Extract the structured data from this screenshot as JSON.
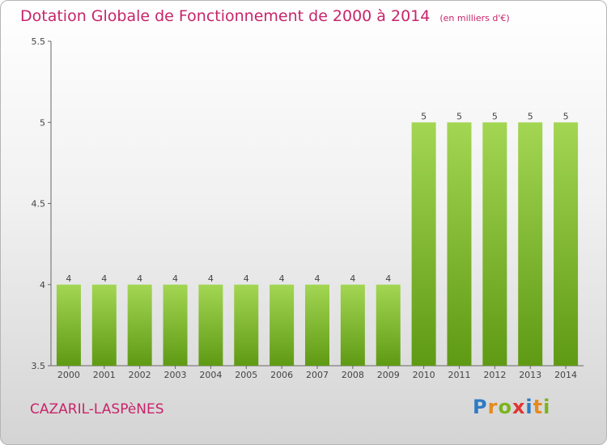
{
  "header": {
    "title": "Dotation Globale de Fonctionnement de 2000 à 2014",
    "subtitle": "(en milliers d'€)"
  },
  "footer": {
    "commune": "CAZARIL-LASPèNES",
    "logo_letters": [
      {
        "char": "P",
        "color": "#2e7bc4"
      },
      {
        "char": "r",
        "color": "#e58a1f"
      },
      {
        "char": "o",
        "color": "#7ab51d"
      },
      {
        "char": "x",
        "color": "#e3342f"
      },
      {
        "char": "i",
        "color": "#2e7bc4"
      },
      {
        "char": "t",
        "color": "#e58a1f"
      },
      {
        "char": "i",
        "color": "#7ab51d"
      }
    ]
  },
  "chart_data": {
    "type": "bar",
    "title": "Dotation Globale de Fonctionnement de 2000 à 2014",
    "subtitle": "(en milliers d'€)",
    "categories": [
      "2000",
      "2001",
      "2002",
      "2003",
      "2004",
      "2005",
      "2006",
      "2007",
      "2008",
      "2009",
      "2010",
      "2011",
      "2012",
      "2013",
      "2014"
    ],
    "values": [
      4,
      4,
      4,
      4,
      4,
      4,
      4,
      4,
      4,
      4,
      5,
      5,
      5,
      5,
      5
    ],
    "value_labels": [
      "4",
      "4",
      "4",
      "4",
      "4",
      "4",
      "4",
      "4",
      "4",
      "4",
      "5",
      "5",
      "5",
      "5",
      "5"
    ],
    "ylim": [
      3.5,
      5.5
    ],
    "yticks": [
      "3.5",
      "4",
      "4.5",
      "5",
      "5.5"
    ],
    "xlabel": "",
    "ylabel": "",
    "grid": false,
    "colors": {
      "bar_light": "#9fd34e",
      "bar_dark": "#5f9a14",
      "axis": "#555555",
      "label": "#444444",
      "accent": "#c8246a"
    }
  }
}
